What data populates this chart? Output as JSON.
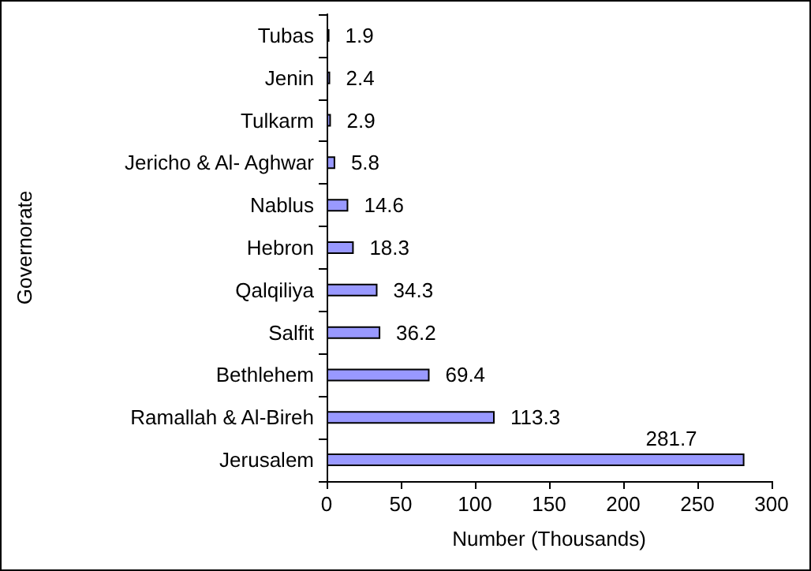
{
  "chart_data": {
    "type": "bar",
    "orientation": "horizontal",
    "xlabel": "Number (Thousands)",
    "ylabel": "Governorate",
    "categories": [
      "Tubas",
      "Jenin",
      "Tulkarm",
      "Jericho & Al- Aghwar",
      "Nablus",
      "Hebron",
      "Qalqiliya",
      "Salfit",
      "Bethlehem",
      "Ramallah & Al-Bireh",
      "Jerusalem"
    ],
    "values": [
      1.9,
      2.4,
      2.9,
      5.8,
      14.6,
      18.3,
      34.3,
      36.2,
      69.4,
      113.3,
      281.7
    ],
    "color": "#9999ff",
    "xlim": [
      0,
      300
    ],
    "xticks": [
      0,
      50,
      100,
      150,
      200,
      250,
      300
    ],
    "data_labels": true,
    "grid": false
  }
}
